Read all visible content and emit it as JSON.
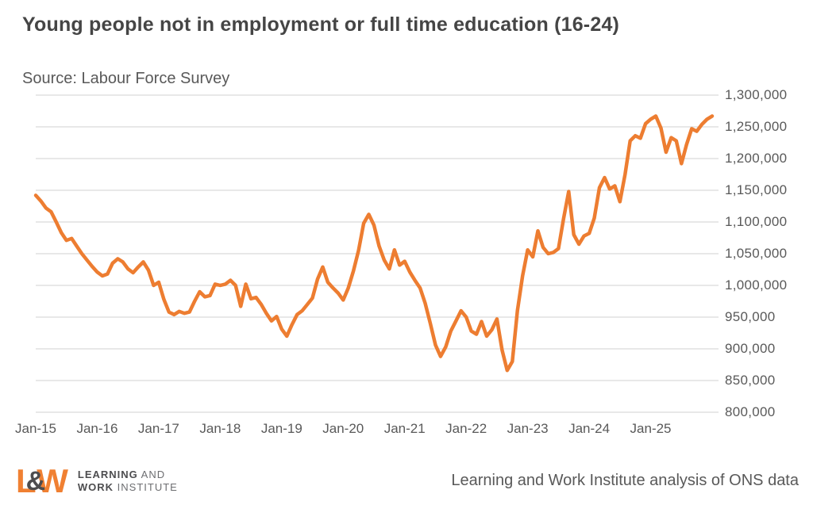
{
  "title": "Young people not in employment or full time education (16-24)",
  "source": "Source: Labour Force Survey",
  "footer": {
    "attribution": "Learning and Work Institute analysis of ONS data",
    "logo": {
      "mark_l": "L",
      "mark_amp": "&",
      "mark_w": "W",
      "line1_bold": "LEARNING",
      "line1_light": "AND",
      "line2_bold": "WORK",
      "line2_light": "INSTITUTE"
    }
  },
  "colors": {
    "line": "#ED7D31",
    "grid": "#D9D9D9",
    "text": "#595959",
    "title_text": "#454545",
    "logo_orange": "#F08032",
    "logo_gray": "#4D4D4F"
  },
  "chart_data": {
    "type": "line",
    "title": "Young people not in employment or full time education (16-24)",
    "subtitle": "Source: Labour Force Survey",
    "grid": "horizontal",
    "legend": "none",
    "ylim": [
      800000,
      1300000
    ],
    "ytick_step": 50000,
    "y_tick_labels_top_down": [
      "1,300,000",
      "1,250,000",
      "1,200,000",
      "1,150,000",
      "1,100,000",
      "1,050,000",
      "1,000,000",
      "950,000",
      "900,000",
      "850,000",
      "800,000"
    ],
    "x_tick_labels": [
      "Jan-15",
      "Jan-16",
      "Jan-17",
      "Jan-18",
      "Jan-19",
      "Jan-20",
      "Jan-21",
      "Jan-22",
      "Jan-23",
      "Jan-24",
      "Jan-25"
    ],
    "x_tick_every": 12,
    "series": [
      {
        "name": "Young people not in employment or full time education (16-24)",
        "start": "Jan-15",
        "frequency": "monthly",
        "color": "#ED7D31",
        "values": [
          1142000,
          1133000,
          1122000,
          1116000,
          1100000,
          1083000,
          1071000,
          1074000,
          1062000,
          1050000,
          1040000,
          1030000,
          1021000,
          1015000,
          1018000,
          1035000,
          1042000,
          1037000,
          1026000,
          1020000,
          1029000,
          1037000,
          1024000,
          1000000,
          1005000,
          978000,
          958000,
          954000,
          959000,
          956000,
          958000,
          975000,
          990000,
          982000,
          984000,
          1002000,
          1000000,
          1002000,
          1008000,
          1000000,
          967000,
          1002000,
          979000,
          981000,
          970000,
          956000,
          944000,
          951000,
          931000,
          920000,
          938000,
          954000,
          960000,
          970000,
          980000,
          1010000,
          1029000,
          1005000,
          996000,
          988000,
          977000,
          996000,
          1023000,
          1055000,
          1098000,
          1112000,
          1095000,
          1062000,
          1040000,
          1026000,
          1056000,
          1032000,
          1038000,
          1021000,
          1008000,
          996000,
          972000,
          940000,
          906000,
          888000,
          903000,
          928000,
          944000,
          960000,
          950000,
          928000,
          923000,
          943000,
          920000,
          930000,
          947000,
          898000,
          866000,
          880000,
          960000,
          1015000,
          1056000,
          1045000,
          1086000,
          1060000,
          1050000,
          1052000,
          1058000,
          1105000,
          1148000,
          1080000,
          1065000,
          1078000,
          1082000,
          1106000,
          1154000,
          1170000,
          1152000,
          1157000,
          1132000,
          1175000,
          1228000,
          1236000,
          1232000,
          1255000,
          1262000,
          1267000,
          1248000,
          1210000,
          1233000,
          1228000,
          1192000,
          1222000,
          1247000,
          1243000,
          1254000,
          1262000,
          1267000
        ]
      }
    ]
  }
}
